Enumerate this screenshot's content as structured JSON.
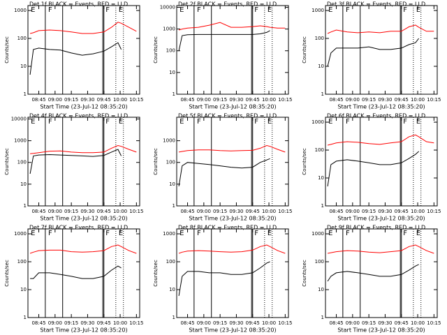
{
  "chart_data": [
    {
      "type": "line",
      "title": "Det 1f BLACK = Events, RED = LLD",
      "ylabel": "Counts/sec",
      "xlabel": "Start Time (23-Jul-12 08:35:20)",
      "log_y": true,
      "x": [
        "08:37",
        "08:40",
        "08:45",
        "08:55",
        "09:05",
        "09:15",
        "09:25",
        "09:35",
        "09:45",
        "09:52",
        "09:58",
        "10:01",
        "10:08",
        "10:15"
      ],
      "xlim": [
        "08:35",
        "10:18"
      ],
      "xticks": [
        "08:45",
        "09:00",
        "09:15",
        "09:30",
        "09:45",
        "10:00",
        "10:15"
      ],
      "ylim": [
        1,
        1500
      ],
      "yticks": [
        1,
        10,
        100,
        1000
      ],
      "series": [
        {
          "color": "#000000",
          "values": [
            5,
            40,
            45,
            40,
            38,
            30,
            25,
            28,
            35,
            50,
            70,
            40,
            null,
            null
          ]
        },
        {
          "color": "#ff0000",
          "values": [
            150,
            160,
            190,
            200,
            190,
            170,
            150,
            150,
            170,
            250,
            380,
            350,
            250,
            180
          ]
        }
      ],
      "annotations": [
        {
          "text": "E",
          "x": "08:37"
        },
        {
          "text": "F",
          "x": "08:53"
        },
        {
          "text": "F",
          "x": "09:46"
        },
        {
          "text": "E",
          "x": "09:58"
        }
      ],
      "vlines": [
        {
          "x": "08:51",
          "style": "solid"
        },
        {
          "x": "09:07",
          "style": "solid"
        },
        {
          "x": "09:44",
          "style": "solid"
        },
        {
          "x": "09:45",
          "style": "solid"
        },
        {
          "x": "09:56",
          "style": "dotted"
        },
        {
          "x": "10:03",
          "style": "dotted"
        }
      ]
    },
    {
      "type": "line",
      "title": "Det 2f BLACK = Events, RED = LLD",
      "ylabel": "Counts/sec",
      "xlabel": "Start Time (23-Jul-12 08:35:20)",
      "log_y": true,
      "x": [
        "08:37",
        "08:40",
        "08:45",
        "08:55",
        "09:05",
        "09:15",
        "09:25",
        "09:35",
        "09:45",
        "09:52",
        "09:58",
        "10:01",
        "10:08",
        "10:15"
      ],
      "xlim": [
        "08:35",
        "10:18"
      ],
      "xticks": [
        "08:45",
        "09:00",
        "09:15",
        "09:30",
        "09:45",
        "10:00",
        "10:15"
      ],
      "ylim": [
        1,
        12000
      ],
      "yticks": [
        1,
        10,
        100,
        1000,
        10000
      ],
      "series": [
        {
          "color": "#000000",
          "values": [
            100,
            500,
            550,
            560,
            560,
            560,
            560,
            560,
            560,
            600,
            700,
            850,
            null,
            null
          ]
        },
        {
          "color": "#ff0000",
          "values": [
            900,
            1000,
            1100,
            1200,
            1500,
            2000,
            1200,
            1200,
            1300,
            1400,
            1300,
            1200,
            1100,
            1100
          ]
        }
      ],
      "annotations": [
        {
          "text": "E",
          "x": "08:37"
        },
        {
          "text": "F",
          "x": "08:53"
        },
        {
          "text": "F",
          "x": "09:46"
        },
        {
          "text": "E",
          "x": "09:58"
        }
      ],
      "vlines": [
        {
          "x": "08:51",
          "style": "solid"
        },
        {
          "x": "09:07",
          "style": "solid"
        },
        {
          "x": "09:44",
          "style": "solid"
        },
        {
          "x": "09:45",
          "style": "solid"
        },
        {
          "x": "09:56",
          "style": "dotted"
        },
        {
          "x": "10:03",
          "style": "dotted"
        }
      ]
    },
    {
      "type": "line",
      "title": "Det 3f BLACK = Events, RED = LLD",
      "ylabel": "Counts/sec",
      "xlabel": "Start Time (23-Jul-12 08:35:20)",
      "log_y": true,
      "x": [
        "08:37",
        "08:40",
        "08:45",
        "08:55",
        "09:05",
        "09:15",
        "09:25",
        "09:35",
        "09:45",
        "09:52",
        "09:58",
        "10:01",
        "10:08",
        "10:15"
      ],
      "xlim": [
        "08:35",
        "10:18"
      ],
      "xticks": [
        "08:45",
        "09:00",
        "09:15",
        "09:30",
        "09:45",
        "10:00",
        "10:15"
      ],
      "ylim": [
        1,
        1500
      ],
      "yticks": [
        1,
        10,
        100,
        1000
      ],
      "series": [
        {
          "color": "#000000",
          "values": [
            10,
            30,
            45,
            45,
            45,
            50,
            40,
            40,
            45,
            60,
            70,
            100,
            null,
            null
          ]
        },
        {
          "color": "#ff0000",
          "values": [
            150,
            170,
            200,
            170,
            160,
            170,
            160,
            180,
            180,
            260,
            300,
            250,
            180,
            180
          ]
        }
      ],
      "annotations": [
        {
          "text": "E",
          "x": "08:37"
        },
        {
          "text": "F",
          "x": "08:53"
        },
        {
          "text": "F",
          "x": "09:46"
        },
        {
          "text": "E",
          "x": "09:58"
        }
      ],
      "vlines": [
        {
          "x": "08:51",
          "style": "solid"
        },
        {
          "x": "09:07",
          "style": "solid"
        },
        {
          "x": "09:44",
          "style": "solid"
        },
        {
          "x": "09:45",
          "style": "solid"
        },
        {
          "x": "09:56",
          "style": "dotted"
        },
        {
          "x": "10:03",
          "style": "dotted"
        }
      ]
    },
    {
      "type": "line",
      "title": "Det 4f BLACK = Events, RED = LLD",
      "ylabel": "Counts/sec",
      "xlabel": "Start Time (23-Jul-12 08:35:20)",
      "log_y": true,
      "x": [
        "08:37",
        "08:40",
        "08:45",
        "08:55",
        "09:05",
        "09:15",
        "09:25",
        "09:35",
        "09:45",
        "09:52",
        "09:58",
        "10:01",
        "10:08",
        "10:15"
      ],
      "xlim": [
        "08:35",
        "10:18"
      ],
      "xticks": [
        "08:45",
        "09:00",
        "09:15",
        "09:30",
        "09:45",
        "10:00",
        "10:15"
      ],
      "ylim": [
        1,
        12000
      ],
      "yticks": [
        1,
        10,
        100,
        1000,
        10000
      ],
      "series": [
        {
          "color": "#000000",
          "values": [
            30,
            200,
            220,
            230,
            220,
            210,
            200,
            190,
            210,
            300,
            400,
            200,
            null,
            null
          ]
        },
        {
          "color": "#ff0000",
          "values": [
            250,
            260,
            280,
            330,
            340,
            300,
            280,
            280,
            300,
            450,
            600,
            550,
            400,
            300
          ]
        }
      ],
      "annotations": [
        {
          "text": "E",
          "x": "08:37"
        },
        {
          "text": "F",
          "x": "08:53"
        },
        {
          "text": "F",
          "x": "09:46"
        },
        {
          "text": "E",
          "x": "09:58"
        }
      ],
      "vlines": [
        {
          "x": "08:51",
          "style": "solid"
        },
        {
          "x": "09:07",
          "style": "solid"
        },
        {
          "x": "09:44",
          "style": "solid"
        },
        {
          "x": "09:45",
          "style": "solid"
        },
        {
          "x": "09:56",
          "style": "dotted"
        },
        {
          "x": "10:03",
          "style": "dotted"
        }
      ]
    },
    {
      "type": "line",
      "title": "Det 5f BLACK = Events, RED = LLD",
      "ylabel": "Counts/sec",
      "xlabel": "Start Time (23-Jul-12 08:35:20)",
      "log_y": true,
      "x": [
        "08:37",
        "08:40",
        "08:45",
        "08:55",
        "09:05",
        "09:15",
        "09:25",
        "09:35",
        "09:45",
        "09:52",
        "09:58",
        "10:01",
        "10:08",
        "10:15"
      ],
      "xlim": [
        "08:35",
        "10:18"
      ],
      "xticks": [
        "08:45",
        "09:00",
        "09:15",
        "09:30",
        "09:45",
        "10:00",
        "10:15"
      ],
      "ylim": [
        1,
        12000
      ],
      "yticks": [
        1,
        10,
        100,
        1000
      ],
      "series": [
        {
          "color": "#000000",
          "values": [
            8,
            70,
            100,
            90,
            80,
            70,
            60,
            55,
            60,
            100,
            130,
            150,
            null,
            null
          ]
        },
        {
          "color": "#ff0000",
          "values": [
            300,
            320,
            350,
            380,
            380,
            350,
            340,
            350,
            360,
            450,
            600,
            550,
            400,
            300
          ]
        }
      ],
      "annotations": [
        {
          "text": "E",
          "x": "08:37"
        },
        {
          "text": "F",
          "x": "08:53"
        },
        {
          "text": "F",
          "x": "09:46"
        },
        {
          "text": "E",
          "x": "09:58"
        }
      ],
      "vlines": [
        {
          "x": "08:51",
          "style": "solid"
        },
        {
          "x": "09:07",
          "style": "solid"
        },
        {
          "x": "09:44",
          "style": "solid"
        },
        {
          "x": "09:45",
          "style": "solid"
        },
        {
          "x": "09:56",
          "style": "dotted"
        },
        {
          "x": "10:03",
          "style": "dotted"
        }
      ]
    },
    {
      "type": "line",
      "title": "Det 6f BLACK = Events, RED = LLD",
      "ylabel": "Counts/sec",
      "xlabel": "Start Time (23-Jul-12 08:35:20)",
      "log_y": true,
      "x": [
        "08:37",
        "08:40",
        "08:45",
        "08:55",
        "09:05",
        "09:15",
        "09:25",
        "09:35",
        "09:45",
        "09:52",
        "09:58",
        "10:01",
        "10:08",
        "10:15"
      ],
      "xlim": [
        "08:35",
        "10:18"
      ],
      "xticks": [
        "08:45",
        "09:00",
        "09:15",
        "09:30",
        "09:45",
        "10:00",
        "10:15"
      ],
      "ylim": [
        1,
        1500
      ],
      "yticks": [
        1,
        10,
        100,
        1000
      ],
      "series": [
        {
          "color": "#000000",
          "values": [
            5,
            30,
            40,
            45,
            40,
            35,
            30,
            30,
            35,
            50,
            70,
            90,
            null,
            null
          ]
        },
        {
          "color": "#ff0000",
          "values": [
            150,
            160,
            180,
            200,
            190,
            170,
            160,
            180,
            200,
            300,
            350,
            300,
            200,
            180
          ]
        }
      ],
      "annotations": [
        {
          "text": "E",
          "x": "08:37"
        },
        {
          "text": "F",
          "x": "08:53"
        },
        {
          "text": "F",
          "x": "09:46"
        },
        {
          "text": "E",
          "x": "09:58"
        }
      ],
      "vlines": [
        {
          "x": "08:51",
          "style": "solid"
        },
        {
          "x": "09:07",
          "style": "solid"
        },
        {
          "x": "09:44",
          "style": "solid"
        },
        {
          "x": "09:45",
          "style": "solid"
        },
        {
          "x": "09:56",
          "style": "dotted"
        },
        {
          "x": "10:03",
          "style": "dotted"
        }
      ]
    },
    {
      "type": "line",
      "title": "Det 7f BLACK = Events, RED = LLD",
      "ylabel": "Counts/sec",
      "xlabel": "Start Time (23-Jul-12 08:35:20)",
      "log_y": true,
      "x": [
        "08:37",
        "08:40",
        "08:45",
        "08:55",
        "09:05",
        "09:15",
        "09:25",
        "09:35",
        "09:45",
        "09:52",
        "09:58",
        "10:01",
        "10:08",
        "10:15"
      ],
      "xlim": [
        "08:35",
        "10:18"
      ],
      "xticks": [
        "08:45",
        "09:00",
        "09:15",
        "09:30",
        "09:45",
        "10:00",
        "10:15"
      ],
      "ylim": [
        1,
        1500
      ],
      "yticks": [
        1,
        10,
        100,
        1000
      ],
      "series": [
        {
          "color": "#000000",
          "values": [
            25,
            25,
            40,
            40,
            35,
            30,
            25,
            25,
            30,
            50,
            70,
            60,
            null,
            null
          ]
        },
        {
          "color": "#ff0000",
          "values": [
            200,
            220,
            250,
            260,
            260,
            230,
            220,
            230,
            250,
            350,
            400,
            350,
            250,
            200
          ]
        }
      ],
      "annotations": [
        {
          "text": "E",
          "x": "08:37"
        },
        {
          "text": "F",
          "x": "08:53"
        },
        {
          "text": "F",
          "x": "09:46"
        },
        {
          "text": "E",
          "x": "09:58"
        }
      ],
      "vlines": [
        {
          "x": "08:51",
          "style": "solid"
        },
        {
          "x": "09:07",
          "style": "solid"
        },
        {
          "x": "09:44",
          "style": "solid"
        },
        {
          "x": "09:45",
          "style": "solid"
        },
        {
          "x": "09:56",
          "style": "dotted"
        },
        {
          "x": "10:03",
          "style": "dotted"
        }
      ]
    },
    {
      "type": "line",
      "title": "Det 8f BLACK = Events, RED = LLD",
      "ylabel": "Counts/sec",
      "xlabel": "Start Time (23-Jul-12 08:35:20)",
      "log_y": true,
      "x": [
        "08:37",
        "08:40",
        "08:45",
        "08:55",
        "09:05",
        "09:15",
        "09:25",
        "09:35",
        "09:45",
        "09:52",
        "09:58",
        "10:01",
        "10:08",
        "10:15"
      ],
      "xlim": [
        "08:35",
        "10:18"
      ],
      "xticks": [
        "08:45",
        "09:00",
        "09:15",
        "09:30",
        "09:45",
        "10:00",
        "10:15"
      ],
      "ylim": [
        1,
        1500
      ],
      "yticks": [
        1,
        10,
        100,
        1000
      ],
      "series": [
        {
          "color": "#000000",
          "values": [
            6,
            30,
            45,
            45,
            40,
            40,
            35,
            35,
            40,
            60,
            90,
            100,
            null,
            null
          ]
        },
        {
          "color": "#ff0000",
          "values": [
            200,
            220,
            240,
            250,
            240,
            230,
            220,
            230,
            260,
            350,
            400,
            350,
            250,
            200
          ]
        }
      ],
      "annotations": [
        {
          "text": "E",
          "x": "08:37"
        },
        {
          "text": "F",
          "x": "08:53"
        },
        {
          "text": "F",
          "x": "09:46"
        },
        {
          "text": "E",
          "x": "09:58"
        }
      ],
      "vlines": [
        {
          "x": "08:51",
          "style": "solid"
        },
        {
          "x": "09:07",
          "style": "solid"
        },
        {
          "x": "09:44",
          "style": "solid"
        },
        {
          "x": "09:45",
          "style": "solid"
        },
        {
          "x": "09:56",
          "style": "dotted"
        },
        {
          "x": "10:03",
          "style": "dotted"
        }
      ]
    },
    {
      "type": "line",
      "title": "Det 9f BLACK = Events, RED = LLD",
      "ylabel": "Counts/sec",
      "xlabel": "Start Time (23-Jul-12 08:35:20)",
      "log_y": true,
      "x": [
        "08:37",
        "08:40",
        "08:45",
        "08:55",
        "09:05",
        "09:15",
        "09:25",
        "09:35",
        "09:45",
        "09:52",
        "09:58",
        "10:01",
        "10:08",
        "10:15"
      ],
      "xlim": [
        "08:35",
        "10:18"
      ],
      "xticks": [
        "08:45",
        "09:00",
        "09:15",
        "09:30",
        "09:45",
        "10:00",
        "10:15"
      ],
      "ylim": [
        1,
        1500
      ],
      "yticks": [
        1,
        10,
        100,
        1000
      ],
      "series": [
        {
          "color": "#000000",
          "values": [
            20,
            30,
            40,
            45,
            40,
            35,
            30,
            30,
            35,
            50,
            70,
            80,
            null,
            null
          ]
        },
        {
          "color": "#ff0000",
          "values": [
            200,
            210,
            230,
            250,
            240,
            220,
            210,
            230,
            250,
            350,
            400,
            350,
            250,
            200
          ]
        }
      ],
      "annotations": [
        {
          "text": "E",
          "x": "08:37"
        },
        {
          "text": "F",
          "x": "08:53"
        },
        {
          "text": "F",
          "x": "09:46"
        },
        {
          "text": "E",
          "x": "09:58"
        }
      ],
      "vlines": [
        {
          "x": "08:51",
          "style": "solid"
        },
        {
          "x": "09:07",
          "style": "solid"
        },
        {
          "x": "09:44",
          "style": "solid"
        },
        {
          "x": "09:45",
          "style": "solid"
        },
        {
          "x": "09:56",
          "style": "dotted"
        },
        {
          "x": "10:03",
          "style": "dotted"
        }
      ]
    }
  ]
}
